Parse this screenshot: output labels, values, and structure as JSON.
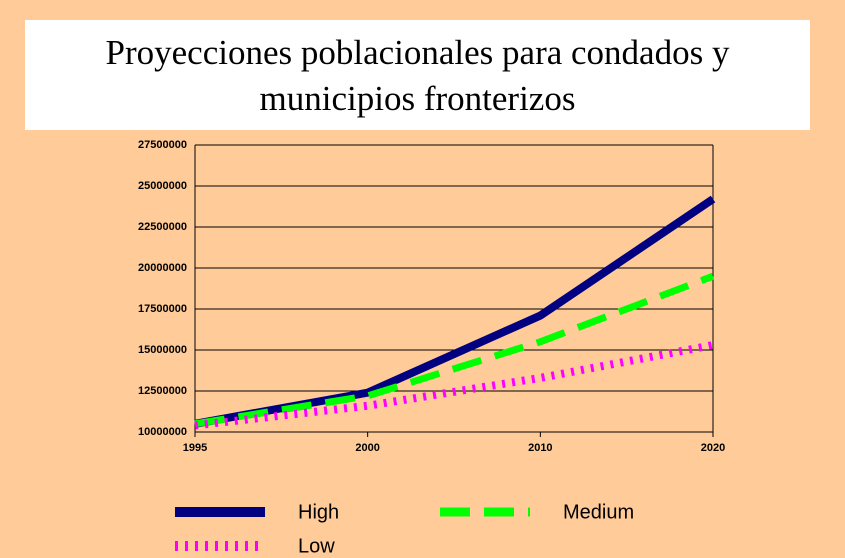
{
  "chart_data": {
    "type": "line",
    "title": "Proyecciones poblacionales para condados y municipios fronterizos",
    "categories": [
      "1995",
      "2000",
      "2010",
      "2020"
    ],
    "series": [
      {
        "name": "High",
        "color": "#000080",
        "values": [
          10500000,
          12400000,
          17100000,
          24200000
        ]
      },
      {
        "name": "Medium",
        "color": "#00ff00",
        "values": [
          10500000,
          12200000,
          15500000,
          19500000
        ]
      },
      {
        "name": "Low",
        "color": "#ff00ff",
        "values": [
          10400000,
          11600000,
          13300000,
          15300000
        ]
      }
    ],
    "ylim": [
      10000000,
      27500000
    ],
    "yticks": [
      10000000,
      12500000,
      15000000,
      17500000,
      20000000,
      22500000,
      25000000,
      27500000
    ],
    "grid": true
  }
}
